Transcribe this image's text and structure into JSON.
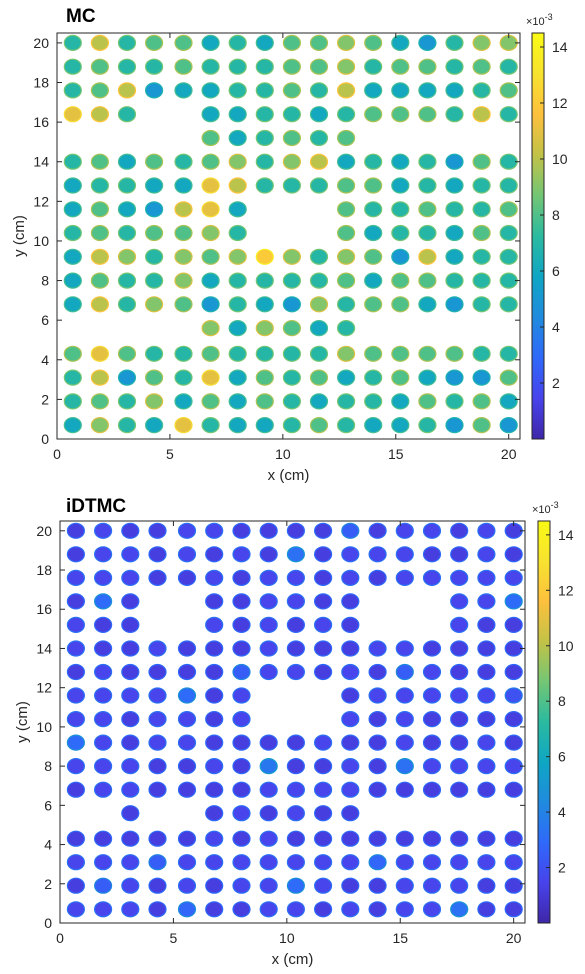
{
  "chart_data": [
    {
      "type": "heatmap",
      "title": "MC",
      "xlabel": "x (cm)",
      "ylabel": "y (cm)",
      "xlim": [
        0,
        20.5
      ],
      "ylim": [
        0,
        20.5
      ],
      "xticks": [
        0,
        5,
        10,
        15,
        20
      ],
      "yticks": [
        0,
        2,
        4,
        6,
        8,
        10,
        12,
        14,
        16,
        18,
        20
      ],
      "colorbar": {
        "ticks": [
          2,
          4,
          6,
          8,
          10,
          12,
          14
        ],
        "exponent_label": "×10",
        "exponent": "-3",
        "range": [
          0,
          14.5
        ]
      },
      "colormap": "parula",
      "grid": "off",
      "x": [
        0.7,
        1.9,
        3.1,
        4.3,
        5.6,
        6.8,
        8.0,
        9.2,
        10.4,
        11.6,
        12.8,
        14.0,
        15.2,
        16.4,
        17.6,
        18.8,
        20.0
      ],
      "y": [
        0.7,
        1.9,
        3.1,
        4.3,
        5.6,
        6.8,
        8.0,
        9.2,
        10.4,
        11.6,
        12.8,
        14.0,
        15.2,
        16.4,
        17.6,
        18.8,
        20.0
      ],
      "values_e-3": [
        [
          6,
          9,
          7,
          6,
          11,
          7,
          6,
          6,
          7,
          8,
          7,
          6,
          6,
          7,
          5,
          8,
          5
        ],
        [
          7,
          8,
          7,
          9,
          6,
          8,
          6,
          8,
          7,
          6,
          7,
          7,
          6,
          8,
          7,
          8,
          6
        ],
        [
          7,
          10,
          5,
          8,
          7,
          11,
          6,
          8,
          7,
          8,
          6,
          7,
          8,
          6,
          5,
          5,
          8
        ],
        [
          8,
          11,
          8,
          7,
          7,
          8,
          7,
          7,
          7,
          7,
          9,
          8,
          8,
          8,
          8,
          7,
          7
        ],
        [
          null,
          null,
          null,
          null,
          null,
          9,
          6,
          9,
          8,
          6,
          7,
          null,
          null,
          null,
          null,
          null,
          null
        ],
        [
          6,
          10,
          7,
          9,
          8,
          5,
          7,
          6,
          5,
          9,
          7,
          8,
          8,
          6,
          5,
          7,
          7
        ],
        [
          6,
          8,
          7,
          7,
          9,
          6,
          7,
          7,
          7,
          7,
          8,
          6,
          8,
          8,
          7,
          7,
          7
        ],
        [
          6,
          10,
          9,
          7,
          9,
          8,
          9,
          12,
          9,
          7,
          9,
          8,
          5,
          10,
          6,
          7,
          7
        ],
        [
          7,
          8,
          7,
          8,
          8,
          9,
          7,
          null,
          null,
          null,
          8,
          6,
          7,
          7,
          6,
          8,
          7
        ],
        [
          6,
          8,
          6,
          5,
          10,
          11,
          6,
          null,
          null,
          null,
          8,
          7,
          7,
          8,
          7,
          7,
          8
        ],
        [
          6,
          7,
          7,
          6,
          6,
          11,
          10,
          7,
          7,
          7,
          8,
          8,
          6,
          7,
          6,
          7,
          7
        ],
        [
          7,
          8,
          6,
          8,
          7,
          8,
          9,
          7,
          9,
          10,
          6,
          7,
          6,
          7,
          5,
          8,
          7
        ],
        [
          null,
          null,
          null,
          null,
          null,
          8,
          6,
          7,
          8,
          7,
          8,
          null,
          null,
          null,
          null,
          null,
          null
        ],
        [
          11,
          10,
          7,
          null,
          null,
          6,
          6,
          7,
          7,
          6,
          7,
          8,
          8,
          8,
          7,
          10,
          7
        ],
        [
          7,
          8,
          10,
          5,
          6,
          6,
          7,
          7,
          8,
          7,
          10,
          6,
          6,
          6,
          6,
          7,
          8
        ],
        [
          7,
          8,
          7,
          7,
          8,
          7,
          7,
          7,
          8,
          8,
          9,
          7,
          8,
          8,
          7,
          8,
          7
        ],
        [
          7,
          10,
          7,
          8,
          8,
          6,
          7,
          6,
          8,
          8,
          9,
          8,
          6,
          5,
          7,
          9,
          9
        ]
      ]
    },
    {
      "type": "heatmap",
      "title": "iDTMC",
      "xlabel": "x (cm)",
      "ylabel": "y (cm)",
      "xlim": [
        0,
        20.5
      ],
      "ylim": [
        0,
        20.5
      ],
      "xticks": [
        0,
        5,
        10,
        15,
        20
      ],
      "yticks": [
        0,
        2,
        4,
        6,
        8,
        10,
        12,
        14,
        16,
        18,
        20
      ],
      "colorbar": {
        "ticks": [
          2,
          4,
          6,
          8,
          10,
          12,
          14
        ],
        "exponent_label": "×10",
        "exponent": "-3",
        "range": [
          0,
          14.5
        ]
      },
      "colormap": "parula",
      "grid": "off",
      "x": [
        0.7,
        1.9,
        3.1,
        4.3,
        5.6,
        6.8,
        8.0,
        9.2,
        10.4,
        11.6,
        12.8,
        14.0,
        15.2,
        16.4,
        17.6,
        18.8,
        20.0
      ],
      "y": [
        0.7,
        1.9,
        3.1,
        4.3,
        5.6,
        6.8,
        8.0,
        9.2,
        10.4,
        11.6,
        12.8,
        14.0,
        15.2,
        16.4,
        17.6,
        18.8,
        20.0
      ],
      "values_e-3": [
        [
          1.5,
          1.5,
          1.5,
          1.2,
          2.8,
          1.2,
          1.2,
          1.5,
          1.5,
          1.2,
          1.5,
          1.2,
          1.5,
          1.5,
          3.2,
          1.2,
          1.2
        ],
        [
          1.2,
          2.5,
          1.5,
          1.2,
          1.5,
          1.2,
          1.5,
          1.5,
          3.0,
          1.5,
          1.2,
          1.2,
          1.5,
          1.5,
          1.5,
          1.2,
          1.2
        ],
        [
          1.5,
          1.5,
          1.5,
          2.5,
          1.5,
          1.5,
          1.5,
          1.5,
          1.5,
          1.5,
          1.5,
          2.8,
          1.5,
          1.5,
          1.5,
          1.5,
          1.5
        ],
        [
          1.2,
          1.2,
          1.2,
          1.2,
          1.2,
          1.5,
          1.2,
          1.5,
          1.2,
          1.2,
          1.2,
          1.2,
          1.2,
          1.2,
          1.2,
          1.2,
          1.2
        ],
        [
          null,
          null,
          1.2,
          null,
          null,
          1.2,
          1.5,
          1.2,
          1.5,
          1.2,
          1.2,
          null,
          null,
          null,
          null,
          null,
          null
        ],
        [
          1.2,
          1.5,
          1.5,
          1.2,
          1.2,
          1.2,
          1.2,
          1.5,
          1.5,
          1.5,
          1.5,
          1.2,
          1.2,
          1.2,
          1.2,
          1.2,
          1.2
        ],
        [
          1.5,
          1.5,
          1.5,
          1.2,
          1.2,
          1.5,
          1.2,
          3.5,
          1.2,
          1.2,
          1.5,
          1.2,
          3.2,
          1.5,
          1.5,
          1.5,
          1.5
        ],
        [
          3.0,
          1.5,
          1.2,
          1.5,
          1.5,
          1.2,
          1.2,
          1.2,
          1.2,
          1.5,
          1.2,
          1.2,
          1.5,
          1.2,
          1.2,
          1.5,
          1.2
        ],
        [
          1.5,
          1.5,
          1.2,
          1.5,
          1.5,
          1.2,
          1.5,
          null,
          null,
          null,
          1.5,
          1.2,
          1.5,
          1.2,
          1.2,
          1.2,
          1.2
        ],
        [
          1.5,
          1.5,
          1.5,
          1.5,
          3.0,
          1.2,
          1.5,
          null,
          null,
          null,
          1.2,
          1.5,
          1.5,
          1.5,
          1.5,
          1.5,
          2.0
        ],
        [
          1.2,
          1.5,
          1.2,
          1.2,
          1.2,
          1.2,
          2.5,
          1.5,
          1.5,
          1.2,
          1.5,
          1.2,
          2.5,
          1.5,
          1.2,
          1.2,
          1.2
        ],
        [
          1.5,
          1.2,
          1.2,
          1.5,
          1.2,
          1.2,
          1.2,
          1.5,
          1.2,
          1.2,
          1.2,
          1.5,
          1.5,
          1.2,
          1.2,
          1.2,
          1.2
        ],
        [
          1.5,
          1.2,
          1.2,
          null,
          null,
          1.5,
          1.2,
          1.5,
          1.2,
          1.5,
          1.2,
          null,
          null,
          null,
          1.5,
          1.2,
          1.2
        ],
        [
          1.2,
          3.0,
          1.2,
          null,
          null,
          1.2,
          1.2,
          1.5,
          1.5,
          1.2,
          1.2,
          null,
          null,
          null,
          1.5,
          1.5,
          3.0
        ],
        [
          1.5,
          1.5,
          1.5,
          1.2,
          1.2,
          1.5,
          1.2,
          1.5,
          1.5,
          1.2,
          1.5,
          1.2,
          1.5,
          1.5,
          1.5,
          1.5,
          1.5
        ],
        [
          1.2,
          1.5,
          1.5,
          1.2,
          1.5,
          1.2,
          1.5,
          1.2,
          3.2,
          1.2,
          1.5,
          1.5,
          1.5,
          1.2,
          1.2,
          1.5,
          1.2
        ],
        [
          1.2,
          1.5,
          1.2,
          1.2,
          1.5,
          1.5,
          1.2,
          1.2,
          1.2,
          1.2,
          2.5,
          1.2,
          1.5,
          1.5,
          1.2,
          1.5,
          1.2
        ]
      ]
    }
  ]
}
